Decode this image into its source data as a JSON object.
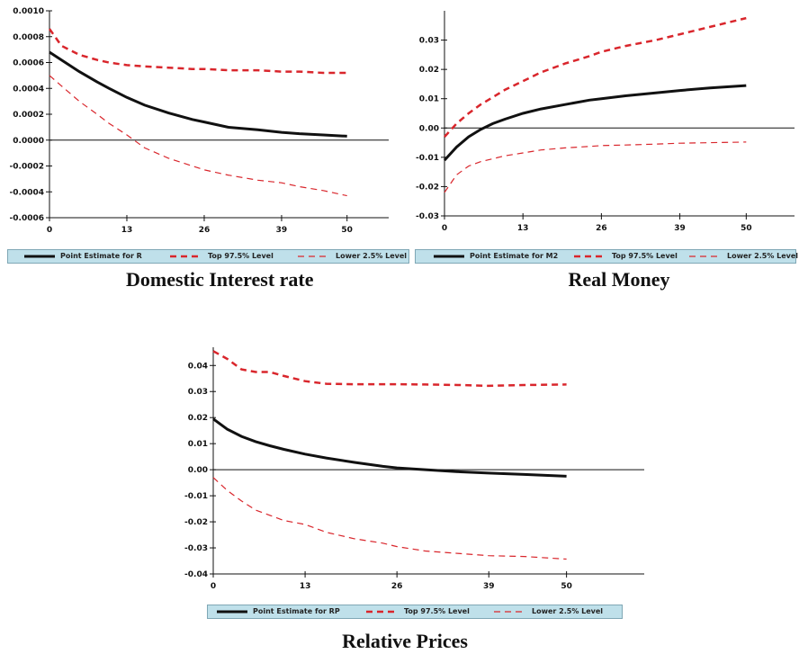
{
  "colors": {
    "point": "#111111",
    "band": "#d9262c",
    "legend_bg": "#bfe0ea"
  },
  "chart_data": [
    {
      "type": "line",
      "caption": "Domestic Interest rate",
      "xticks": [
        0,
        13,
        26,
        39,
        50
      ],
      "xlim": [
        0,
        57
      ],
      "ylim": [
        -0.0006,
        0.001
      ],
      "yticks": [
        "0.0010",
        "0.0008",
        "0.0006",
        "0.0004",
        "0.0002",
        "0.0000",
        "-0.0002",
        "-0.0004",
        "-0.0006"
      ],
      "ytick_values": [
        0.001,
        0.0008,
        0.0006,
        0.0004,
        0.0002,
        0.0,
        -0.0002,
        -0.0004,
        -0.0006
      ],
      "zero_line": true,
      "x": [
        0,
        2,
        5,
        8,
        10,
        13,
        16,
        20,
        24,
        26,
        30,
        35,
        39,
        42,
        46,
        50
      ],
      "series": [
        {
          "name": "Point Estimate for R",
          "style": "solid",
          "values": [
            0.00068,
            0.00062,
            0.00053,
            0.00045,
            0.0004,
            0.00033,
            0.00027,
            0.00021,
            0.00016,
            0.00014,
            0.0001,
            8e-05,
            6e-05,
            5e-05,
            4e-05,
            3e-05
          ]
        },
        {
          "name": "Top 97.5% Level",
          "style": "dash",
          "values": [
            0.00086,
            0.00073,
            0.00066,
            0.00062,
            0.0006,
            0.00058,
            0.00057,
            0.00056,
            0.00055,
            0.00055,
            0.00054,
            0.00054,
            0.00053,
            0.00053,
            0.00052,
            0.00052
          ]
        },
        {
          "name": "Lower 2.5% Level",
          "style": "dash-thin",
          "values": [
            0.0005,
            0.00042,
            0.0003,
            0.0002,
            0.00013,
            4e-05,
            -6e-05,
            -0.00014,
            -0.0002,
            -0.00023,
            -0.00027,
            -0.00031,
            -0.00033,
            -0.00036,
            -0.00039,
            -0.00043
          ]
        }
      ]
    },
    {
      "type": "line",
      "caption": "Real Money",
      "xticks": [
        0,
        13,
        26,
        39,
        50
      ],
      "xlim": [
        0,
        58
      ],
      "ylim": [
        -0.03,
        0.04
      ],
      "yticks": [
        "0.03",
        "0.02",
        "0.01",
        "0.00",
        "-0.01",
        "-0.02",
        "-0.03"
      ],
      "ytick_values": [
        0.03,
        0.02,
        0.01,
        0.0,
        -0.01,
        -0.02,
        -0.03
      ],
      "zero_line": true,
      "x": [
        0,
        2,
        4,
        6,
        8,
        10,
        13,
        16,
        20,
        24,
        26,
        30,
        35,
        39,
        44,
        50
      ],
      "series": [
        {
          "name": "Point Estimate for M2",
          "style": "solid",
          "values": [
            -0.011,
            -0.0065,
            -0.003,
            -0.0005,
            0.0015,
            0.003,
            0.005,
            0.0065,
            0.008,
            0.0095,
            0.01,
            0.011,
            0.012,
            0.0128,
            0.0137,
            0.0145
          ]
        },
        {
          "name": "Top 97.5% Level",
          "style": "dash",
          "values": [
            -0.003,
            0.0015,
            0.005,
            0.008,
            0.0105,
            0.013,
            0.016,
            0.019,
            0.022,
            0.0245,
            0.026,
            0.028,
            0.03,
            0.032,
            0.0345,
            0.0375
          ]
        },
        {
          "name": "Lower 2.5% Level",
          "style": "dash-thin",
          "values": [
            -0.022,
            -0.016,
            -0.013,
            -0.0115,
            -0.0105,
            -0.0095,
            -0.0085,
            -0.0075,
            -0.0068,
            -0.0063,
            -0.006,
            -0.0058,
            -0.0055,
            -0.0052,
            -0.005,
            -0.0048
          ]
        }
      ]
    },
    {
      "type": "line",
      "caption": "Relative Prices",
      "xticks": [
        0,
        13,
        26,
        39,
        50
      ],
      "xlim": [
        0,
        61
      ],
      "ylim": [
        -0.04,
        0.047
      ],
      "yticks": [
        "0.04",
        "0.03",
        "0.02",
        "0.01",
        "0.00",
        "-0.01",
        "-0.02",
        "-0.03",
        "-0.04"
      ],
      "ytick_values": [
        0.04,
        0.03,
        0.02,
        0.01,
        0.0,
        -0.01,
        -0.02,
        -0.03,
        -0.04
      ],
      "zero_line": true,
      "x": [
        0,
        2,
        4,
        6,
        8,
        10,
        13,
        16,
        20,
        24,
        26,
        30,
        35,
        39,
        44,
        50
      ],
      "series": [
        {
          "name": "Point Estimate for RP",
          "style": "solid",
          "values": [
            0.0195,
            0.0155,
            0.0128,
            0.0108,
            0.0092,
            0.0078,
            0.006,
            0.0045,
            0.0028,
            0.0013,
            0.0007,
            0.0,
            -0.0008,
            -0.0013,
            -0.0018,
            -0.0025
          ]
        },
        {
          "name": "Top 97.5% Level",
          "style": "dash",
          "values": [
            0.0455,
            0.0425,
            0.0385,
            0.0375,
            0.0375,
            0.036,
            0.034,
            0.033,
            0.0328,
            0.0328,
            0.0328,
            0.0327,
            0.0325,
            0.0322,
            0.0325,
            0.0327
          ]
        },
        {
          "name": "Lower 2.5% Level",
          "style": "dash-thin",
          "values": [
            -0.003,
            -0.008,
            -0.012,
            -0.0155,
            -0.0175,
            -0.0195,
            -0.021,
            -0.024,
            -0.0265,
            -0.0282,
            -0.0295,
            -0.0312,
            -0.0322,
            -0.033,
            -0.0333,
            -0.0343
          ]
        }
      ]
    }
  ]
}
